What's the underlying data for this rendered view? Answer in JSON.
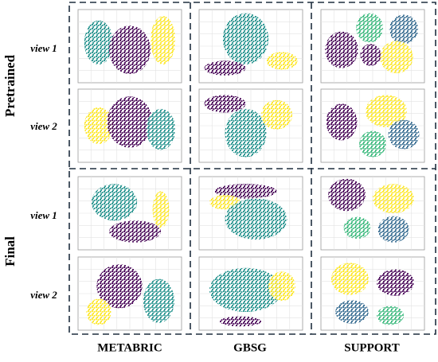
{
  "rows": [
    "Pretrained",
    "Final"
  ],
  "views": [
    "view 1",
    "view 2"
  ],
  "columns": [
    "METABRIC",
    "GBSG",
    "SUPPORT"
  ]
}
